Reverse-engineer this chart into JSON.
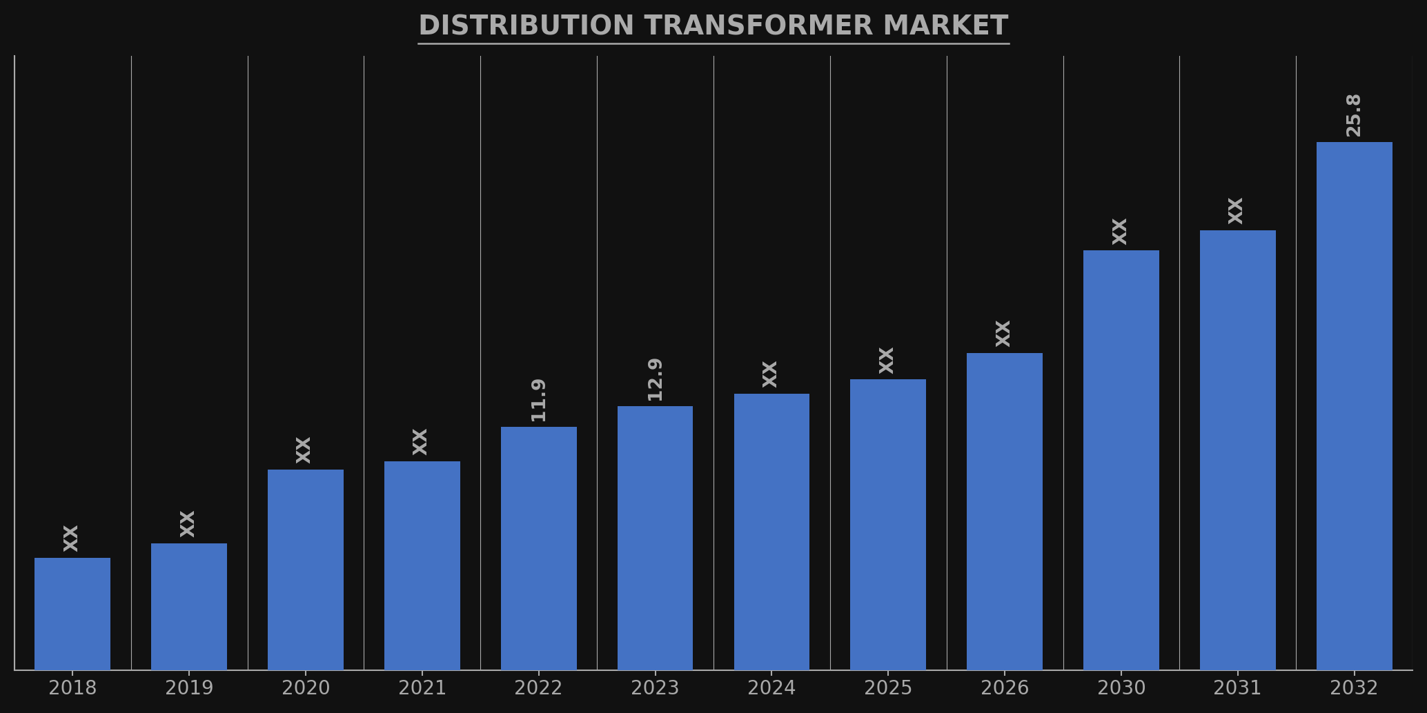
{
  "title": "DISTRIBUTION TRANSFORMER MARKET",
  "background_color": "#111111",
  "bar_color": "#4472c4",
  "categories": [
    "2018",
    "2019",
    "2020",
    "2021",
    "2022",
    "2023",
    "2024",
    "2025",
    "2026",
    "2030",
    "2031",
    "2032"
  ],
  "values": [
    5.5,
    6.2,
    9.8,
    10.2,
    11.9,
    12.9,
    13.5,
    14.2,
    15.5,
    20.5,
    21.5,
    25.8
  ],
  "labels": [
    "XX",
    "XX",
    "XX",
    "XX",
    "11.9",
    "12.9",
    "XX",
    "XX",
    "XX",
    "XX",
    "XX",
    "25.8"
  ],
  "title_fontsize": 28,
  "label_fontsize": 19,
  "tick_fontsize": 20,
  "ylabel_fontsize": 18,
  "title_color": "#aaaaaa",
  "label_color": "#aaaaaa",
  "tick_color": "#aaaaaa",
  "spine_color": "#aaaaaa",
  "ylim": [
    0,
    30
  ]
}
